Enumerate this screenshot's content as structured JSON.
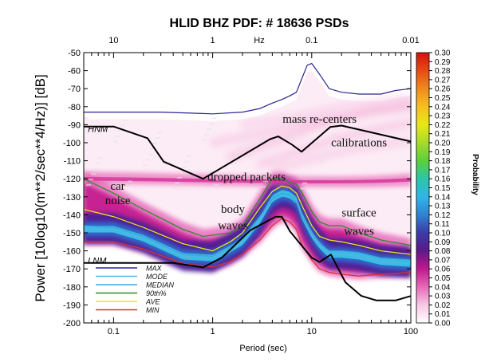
{
  "chart_data": {
    "type": "heatmap",
    "title": "HLID BHZ  PDF: # 18636 PSDs",
    "xlabel": "Period  (sec)",
    "ylabel": "Power [10log10(m**2/sec**4/Hz)] [dB]",
    "top_axis_label": "Hz",
    "x_scale": "log",
    "xlim": [
      0.05,
      100
    ],
    "ylim": [
      -200,
      -50
    ],
    "x_ticks": [
      {
        "value": 0.1,
        "label": "0.1"
      },
      {
        "value": 1,
        "label": "1"
      },
      {
        "value": 10,
        "label": "10"
      },
      {
        "value": 100,
        "label": "100"
      }
    ],
    "top_ticks": [
      {
        "period": 0.1,
        "label": "10"
      },
      {
        "period": 1,
        "label": "1"
      },
      {
        "period": 10,
        "label": "0.1"
      },
      {
        "period": 100,
        "label": "0.01"
      }
    ],
    "y_ticks": [
      -50,
      -60,
      -70,
      -80,
      -90,
      -100,
      -110,
      -120,
      -130,
      -140,
      -150,
      -160,
      -170,
      -180,
      -190,
      -200
    ],
    "colorbar": {
      "label": "Probability",
      "ticks": [
        "0.30",
        "0.29",
        "0.28",
        "0.27",
        "0.26",
        "0.25",
        "0.24",
        "0.23",
        "0.22",
        "0.21",
        "0.20",
        "0.19",
        "0.18",
        "0.17",
        "0.16",
        "0.15",
        "0.14",
        "0.13",
        "0.12",
        "0.11",
        "0.10",
        "0.09",
        "0.08",
        "0.07",
        "0.06",
        "0.05",
        "0.04",
        "0.03",
        "0.02",
        "0.01",
        "0.00"
      ],
      "colors": [
        "#ffffff",
        "#f7c8e4",
        "#e66ab8",
        "#c2188c",
        "#5b1a86",
        "#3b3aa8",
        "#3182d2",
        "#2fb7e6",
        "#29c6a8",
        "#5ccf3c",
        "#a6dc28",
        "#e8e61a",
        "#f5c020",
        "#f08a1a",
        "#e84a14",
        "#d01414"
      ]
    },
    "annotations": [
      {
        "text": "mass re-centers",
        "x": 12,
        "y": -89
      },
      {
        "text": "calibrations",
        "x": 30,
        "y": -102
      },
      {
        "text": "car",
        "x": 0.11,
        "y": -126
      },
      {
        "text": "noise",
        "x": 0.11,
        "y": -134
      },
      {
        "text": "dropped packets",
        "x": 2.2,
        "y": -121
      },
      {
        "text": "body",
        "x": 1.6,
        "y": -139
      },
      {
        "text": "waves",
        "x": 1.6,
        "y": -148
      },
      {
        "text": "surface",
        "x": 30,
        "y": -141
      },
      {
        "text": "waves",
        "x": 30,
        "y": -151
      },
      {
        "text": "HNM",
        "x": 0.055,
        "y": -94
      },
      {
        "text": "LNM",
        "x": 0.055,
        "y": -167
      }
    ],
    "legend": [
      {
        "name": "MAX",
        "color": "#2b2490"
      },
      {
        "name": "MODE",
        "color": "#5fb0e8"
      },
      {
        "name": "MEDIAN",
        "color": "#3aa8d8"
      },
      {
        "name": "90th%",
        "color": "#2e8b2e"
      },
      {
        "name": "AVE",
        "color": "#e6e61a"
      },
      {
        "name": "MIN",
        "color": "#e03030"
      }
    ],
    "series": [
      {
        "name": "MAX",
        "color": "#2b2490",
        "x": [
          0.05,
          0.1,
          0.3,
          1,
          2,
          3,
          4,
          5,
          6,
          7,
          8,
          9,
          10,
          12,
          15,
          20,
          30,
          50,
          70,
          100
        ],
        "y": [
          -83,
          -83,
          -83,
          -84,
          -83,
          -81,
          -78,
          -76,
          -74,
          -72,
          -64,
          -57,
          -56,
          -62,
          -70,
          -72,
          -73,
          -73,
          -71,
          -70
        ]
      },
      {
        "name": "MODE",
        "color": "#5fb0e8",
        "x": [
          0.05,
          0.1,
          0.2,
          0.5,
          1,
          1.5,
          2,
          3,
          4,
          5,
          6,
          7,
          8,
          10,
          12,
          15,
          20,
          30,
          50,
          100
        ],
        "y": [
          -148,
          -148,
          -153,
          -163,
          -164,
          -159,
          -155,
          -143,
          -131,
          -128,
          -129,
          -132,
          -141,
          -151,
          -157,
          -162,
          -162,
          -163,
          -166,
          -167
        ]
      },
      {
        "name": "MEDIAN",
        "color": "#3aa8d8",
        "x": [
          0.05,
          0.1,
          0.2,
          0.5,
          1,
          1.5,
          2,
          3,
          4,
          5,
          6,
          7,
          8,
          10,
          12,
          15,
          20,
          30,
          50,
          100
        ],
        "y": [
          -146,
          -147,
          -152,
          -162,
          -163,
          -158,
          -153,
          -141,
          -131,
          -128,
          -129,
          -133,
          -141,
          -150,
          -156,
          -160,
          -160,
          -161,
          -164,
          -165
        ]
      },
      {
        "name": "90th%",
        "color": "#2e8b2e",
        "x": [
          0.05,
          0.1,
          0.2,
          0.5,
          0.8,
          1.5,
          2,
          3,
          4,
          5,
          6,
          7,
          8,
          10,
          12,
          15,
          20,
          30,
          50,
          100
        ],
        "y": [
          -120,
          -128,
          -137,
          -148,
          -152,
          -150,
          -146,
          -131,
          -120,
          -120,
          -122,
          -123,
          -128,
          -138,
          -144,
          -146,
          -146,
          -150,
          -154,
          -157
        ]
      },
      {
        "name": "AVE",
        "color": "#e6e61a",
        "x": [
          0.05,
          0.1,
          0.2,
          0.5,
          1,
          1.5,
          2,
          3,
          4,
          5,
          6,
          7,
          8,
          10,
          12,
          15,
          20,
          30,
          50,
          100
        ],
        "y": [
          -137,
          -141,
          -147,
          -156,
          -160,
          -155,
          -150,
          -136,
          -127,
          -124,
          -125,
          -128,
          -135,
          -146,
          -152,
          -154,
          -155,
          -157,
          -160,
          -162
        ]
      },
      {
        "name": "MIN",
        "color": "#e03030",
        "x": [
          0.05,
          0.1,
          0.2,
          0.5,
          1,
          1.5,
          2,
          3,
          4,
          5,
          6,
          7,
          8,
          10,
          12,
          15,
          20,
          30,
          50,
          100
        ],
        "y": [
          -155,
          -155,
          -159,
          -167,
          -169,
          -166,
          -162,
          -154,
          -146,
          -142,
          -144,
          -148,
          -157,
          -165,
          -170,
          -172,
          -173,
          -174,
          -173,
          -172
        ]
      },
      {
        "name": "HNM",
        "color": "#000000",
        "x": [
          0.05,
          0.1,
          0.22,
          0.32,
          0.8,
          3.8,
          4.6,
          6.3,
          7.9,
          15.4,
          20,
          354
        ],
        "y": [
          -91,
          -91,
          -97.5,
          -110.5,
          -120,
          -98,
          -96.5,
          -101,
          -105,
          -91.25,
          -90.5,
          -106.25
        ]
      },
      {
        "name": "LNM",
        "color": "#000000",
        "x": [
          0.05,
          0.1,
          0.17,
          0.4,
          0.8,
          1.24,
          2.4,
          4.3,
          5,
          6,
          10,
          12,
          15.6,
          21.9,
          31.6,
          45,
          70,
          101
        ],
        "y": [
          -166.7,
          -166.7,
          -166.7,
          -166.7,
          -169.2,
          -163.7,
          -148.6,
          -141.1,
          -141.1,
          -149,
          -163.8,
          -166.2,
          -162.1,
          -177.5,
          -185,
          -187.5,
          -187.5,
          -185
        ]
      }
    ]
  }
}
